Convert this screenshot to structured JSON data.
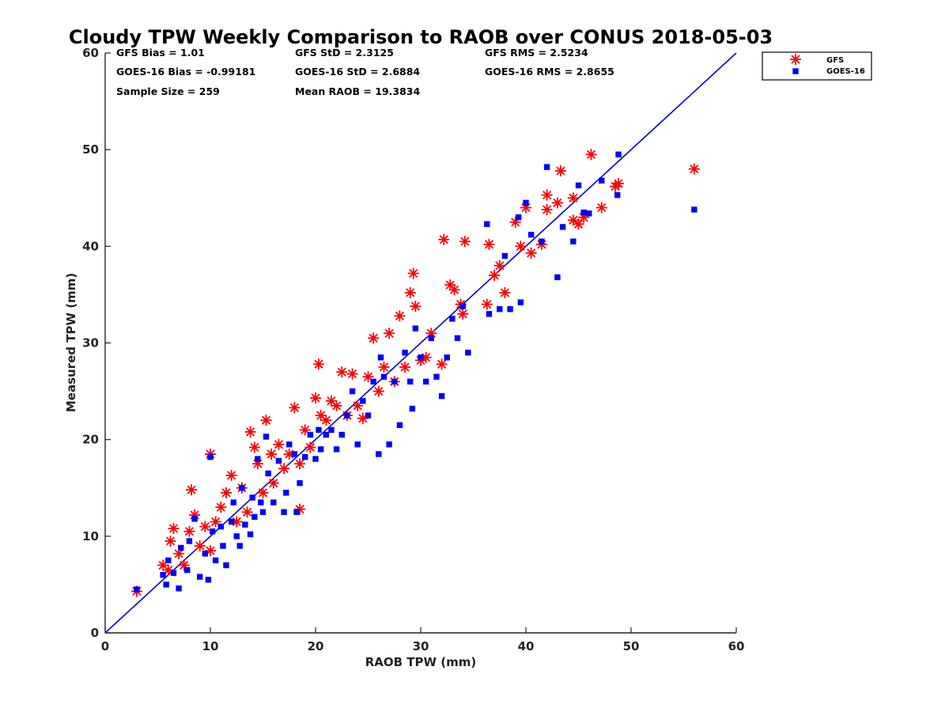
{
  "chart_data": {
    "type": "scatter",
    "title": "Cloudy TPW Weekly Comparison to RAOB over CONUS 2018-05-03",
    "xlabel": "RAOB TPW (mm)",
    "ylabel": "Measured TPW (mm)",
    "xlim": [
      0,
      60
    ],
    "ylim": [
      0,
      60
    ],
    "xticks": [
      "0",
      "10",
      "20",
      "30",
      "40",
      "50",
      "60"
    ],
    "yticks": [
      "0",
      "10",
      "20",
      "30",
      "40",
      "50",
      "60"
    ],
    "grid": false,
    "legend_placement": "top-right outside",
    "reference_line": {
      "x": [
        0,
        60
      ],
      "y": [
        0,
        60
      ],
      "color": "#0000cc"
    },
    "stats": {
      "gfs_bias": "GFS Bias = 1.01",
      "gfs_std": "GFS StD = 2.3125",
      "gfs_rms": "GFS RMS = 2.5234",
      "goes_bias": "GOES-16 Bias = -0.99181",
      "goes_std": "GOES-16 StD = 2.6884",
      "goes_rms": "GOES-16 RMS = 2.8655",
      "sample_size": "Sample Size = 259",
      "mean_raob": "Mean RAOB = 19.3834"
    },
    "series": [
      {
        "name": "GFS",
        "marker": "asterisk",
        "color": "#ff0000",
        "points": [
          [
            3,
            4.3
          ],
          [
            5.5,
            7
          ],
          [
            6,
            6.5
          ],
          [
            6.2,
            9.5
          ],
          [
            6.5,
            10.8
          ],
          [
            7,
            8.2
          ],
          [
            7.5,
            7
          ],
          [
            8,
            10.5
          ],
          [
            8.2,
            14.8
          ],
          [
            8.5,
            12.2
          ],
          [
            9,
            9
          ],
          [
            9.5,
            11
          ],
          [
            10,
            18.5
          ],
          [
            10.5,
            11.5
          ],
          [
            10,
            8.5
          ],
          [
            11,
            13
          ],
          [
            11.5,
            14.5
          ],
          [
            12,
            16.3
          ],
          [
            12.5,
            11.5
          ],
          [
            13,
            15
          ],
          [
            13.5,
            12.5
          ],
          [
            13.8,
            20.8
          ],
          [
            14.2,
            19.2
          ],
          [
            14.5,
            17.5
          ],
          [
            15,
            14.5
          ],
          [
            15.3,
            22
          ],
          [
            15.8,
            18.5
          ],
          [
            16,
            15.5
          ],
          [
            16.5,
            19.5
          ],
          [
            17,
            17
          ],
          [
            17.5,
            18.5
          ],
          [
            18,
            23.3
          ],
          [
            18.5,
            12.8
          ],
          [
            18.5,
            17.5
          ],
          [
            19,
            21
          ],
          [
            19.5,
            19.2
          ],
          [
            20,
            24.3
          ],
          [
            20.3,
            27.8
          ],
          [
            20.5,
            22.5
          ],
          [
            21,
            22
          ],
          [
            21.5,
            24
          ],
          [
            22,
            23.5
          ],
          [
            22.5,
            27
          ],
          [
            23,
            22.5
          ],
          [
            23.5,
            26.8
          ],
          [
            24,
            23.5
          ],
          [
            24.5,
            22.2
          ],
          [
            25,
            26.5
          ],
          [
            25.5,
            30.5
          ],
          [
            26,
            25
          ],
          [
            26.5,
            27.5
          ],
          [
            27,
            31
          ],
          [
            27.5,
            26
          ],
          [
            28,
            32.8
          ],
          [
            28.5,
            27.5
          ],
          [
            29,
            35.2
          ],
          [
            29.3,
            37.2
          ],
          [
            29.5,
            33.8
          ],
          [
            30,
            28.2
          ],
          [
            30.5,
            28.5
          ],
          [
            31,
            31
          ],
          [
            32,
            27.8
          ],
          [
            32.2,
            40.7
          ],
          [
            32.8,
            36
          ],
          [
            33.2,
            35.5
          ],
          [
            33.8,
            34
          ],
          [
            34,
            33
          ],
          [
            34.2,
            40.5
          ],
          [
            36.3,
            34
          ],
          [
            36.5,
            40.2
          ],
          [
            37,
            37
          ],
          [
            37.5,
            38
          ],
          [
            38,
            35.2
          ],
          [
            39,
            42.5
          ],
          [
            39.5,
            40
          ],
          [
            40,
            44
          ],
          [
            40.5,
            39.3
          ],
          [
            41.5,
            40.2
          ],
          [
            42,
            45.3
          ],
          [
            42,
            43.8
          ],
          [
            43,
            44.5
          ],
          [
            43.3,
            47.8
          ],
          [
            44.5,
            42.7
          ],
          [
            44.5,
            45
          ],
          [
            45,
            42.3
          ],
          [
            45.5,
            43
          ],
          [
            46.2,
            49.5
          ],
          [
            47.2,
            44
          ],
          [
            48.5,
            46.2
          ],
          [
            48.8,
            46.5
          ],
          [
            56,
            48
          ]
        ]
      },
      {
        "name": "GOES-16",
        "marker": "square",
        "color": "#0000ff",
        "points": [
          [
            3,
            4.5
          ],
          [
            5.5,
            6
          ],
          [
            5.8,
            5
          ],
          [
            6,
            7.5
          ],
          [
            6.5,
            6.2
          ],
          [
            7,
            4.6
          ],
          [
            7.2,
            8.8
          ],
          [
            7.8,
            6.5
          ],
          [
            8,
            9.5
          ],
          [
            8.5,
            11.8
          ],
          [
            9,
            5.8
          ],
          [
            9.5,
            8.2
          ],
          [
            9.8,
            5.5
          ],
          [
            10,
            18.2
          ],
          [
            10.2,
            10.5
          ],
          [
            10.5,
            7.5
          ],
          [
            11,
            11
          ],
          [
            11.2,
            9
          ],
          [
            11.5,
            7
          ],
          [
            12,
            11.5
          ],
          [
            12.2,
            13.5
          ],
          [
            12.5,
            10
          ],
          [
            12.8,
            9
          ],
          [
            13,
            15
          ],
          [
            13.3,
            11.2
          ],
          [
            13.8,
            10.2
          ],
          [
            14,
            14
          ],
          [
            14.2,
            12
          ],
          [
            14.5,
            18
          ],
          [
            14.8,
            13.5
          ],
          [
            15,
            12.5
          ],
          [
            15.3,
            20.3
          ],
          [
            15.5,
            16.5
          ],
          [
            16,
            13.5
          ],
          [
            16.5,
            17.8
          ],
          [
            17,
            12.5
          ],
          [
            17.2,
            14.5
          ],
          [
            17.5,
            19.5
          ],
          [
            18,
            18.5
          ],
          [
            18.2,
            12.5
          ],
          [
            18.5,
            15.5
          ],
          [
            19,
            18.2
          ],
          [
            19.5,
            20.5
          ],
          [
            20,
            18
          ],
          [
            20.3,
            21
          ],
          [
            20.5,
            19
          ],
          [
            21,
            20.5
          ],
          [
            21.5,
            21
          ],
          [
            22,
            19
          ],
          [
            22.5,
            20.5
          ],
          [
            23,
            22.5
          ],
          [
            23.5,
            25
          ],
          [
            24,
            19.5
          ],
          [
            24.5,
            24
          ],
          [
            25,
            22.5
          ],
          [
            25.5,
            26
          ],
          [
            26,
            18.5
          ],
          [
            26.2,
            28.5
          ],
          [
            26.5,
            26.5
          ],
          [
            27,
            19.5
          ],
          [
            27.5,
            26
          ],
          [
            28,
            21.5
          ],
          [
            28.5,
            29
          ],
          [
            29,
            26
          ],
          [
            29.2,
            23.2
          ],
          [
            29.5,
            31.5
          ],
          [
            30,
            28.5
          ],
          [
            30.5,
            26
          ],
          [
            31,
            30.5
          ],
          [
            31.5,
            26.5
          ],
          [
            32,
            24.5
          ],
          [
            32.5,
            28.5
          ],
          [
            33,
            32.5
          ],
          [
            33.5,
            30.5
          ],
          [
            34,
            33.8
          ],
          [
            34.5,
            29
          ],
          [
            36.3,
            42.3
          ],
          [
            36.5,
            33
          ],
          [
            37.5,
            33.5
          ],
          [
            38,
            39
          ],
          [
            38.5,
            33.5
          ],
          [
            39.3,
            43
          ],
          [
            39.5,
            34.2
          ],
          [
            40,
            44.5
          ],
          [
            40.5,
            41.2
          ],
          [
            41.5,
            40.5
          ],
          [
            42,
            48.2
          ],
          [
            43,
            36.8
          ],
          [
            43.5,
            42
          ],
          [
            44.5,
            40.5
          ],
          [
            45,
            46.3
          ],
          [
            45.5,
            43.5
          ],
          [
            46,
            43.4
          ],
          [
            47.2,
            46.8
          ],
          [
            48.7,
            45.3
          ],
          [
            48.8,
            49.5
          ],
          [
            56,
            43.8
          ]
        ]
      }
    ]
  }
}
